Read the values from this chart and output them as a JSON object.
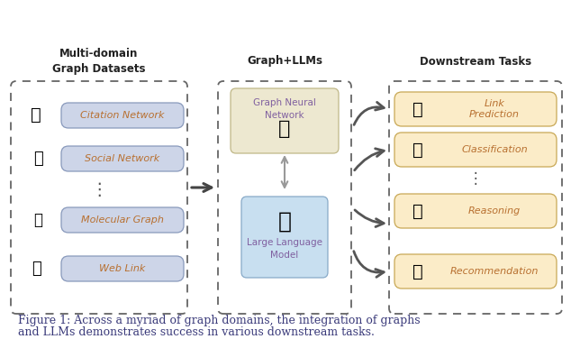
{
  "caption_line1": "Figure 1: Across a myriad of graph domains, the integration of graphs",
  "caption_line2": "and LLMs demonstrates success in various downstream tasks.",
  "left_title": "Multi-domain\nGraph Datasets",
  "mid_title": "Graph+LLMs",
  "right_title": "Downstream Tasks",
  "left_items": [
    "Citation Network",
    "Social Network",
    "Molecular Graph",
    "Web Link"
  ],
  "mid_item_top": "Graph Neural\nNetwork",
  "mid_item_bot": "Large Language\nModel",
  "right_items": [
    "Link\nPrediction",
    "Classification",
    "Reasoning",
    "Recommendation"
  ],
  "left_box_color": "#cdd5e8",
  "right_box_color": "#fbecc8",
  "gnn_box_color": "#ede8d0",
  "llm_box_color": "#b8d4e8",
  "dashed_color": "#666666",
  "item_text_color": "#b87030",
  "title_color": "#222222",
  "caption_color": "#3a3a7a",
  "arrow_color": "#555555",
  "mid_text_color": "#8060a0",
  "right_text_color": "#b87030",
  "bg_color": "#ffffff",
  "mid_arrow_color": "#999999"
}
